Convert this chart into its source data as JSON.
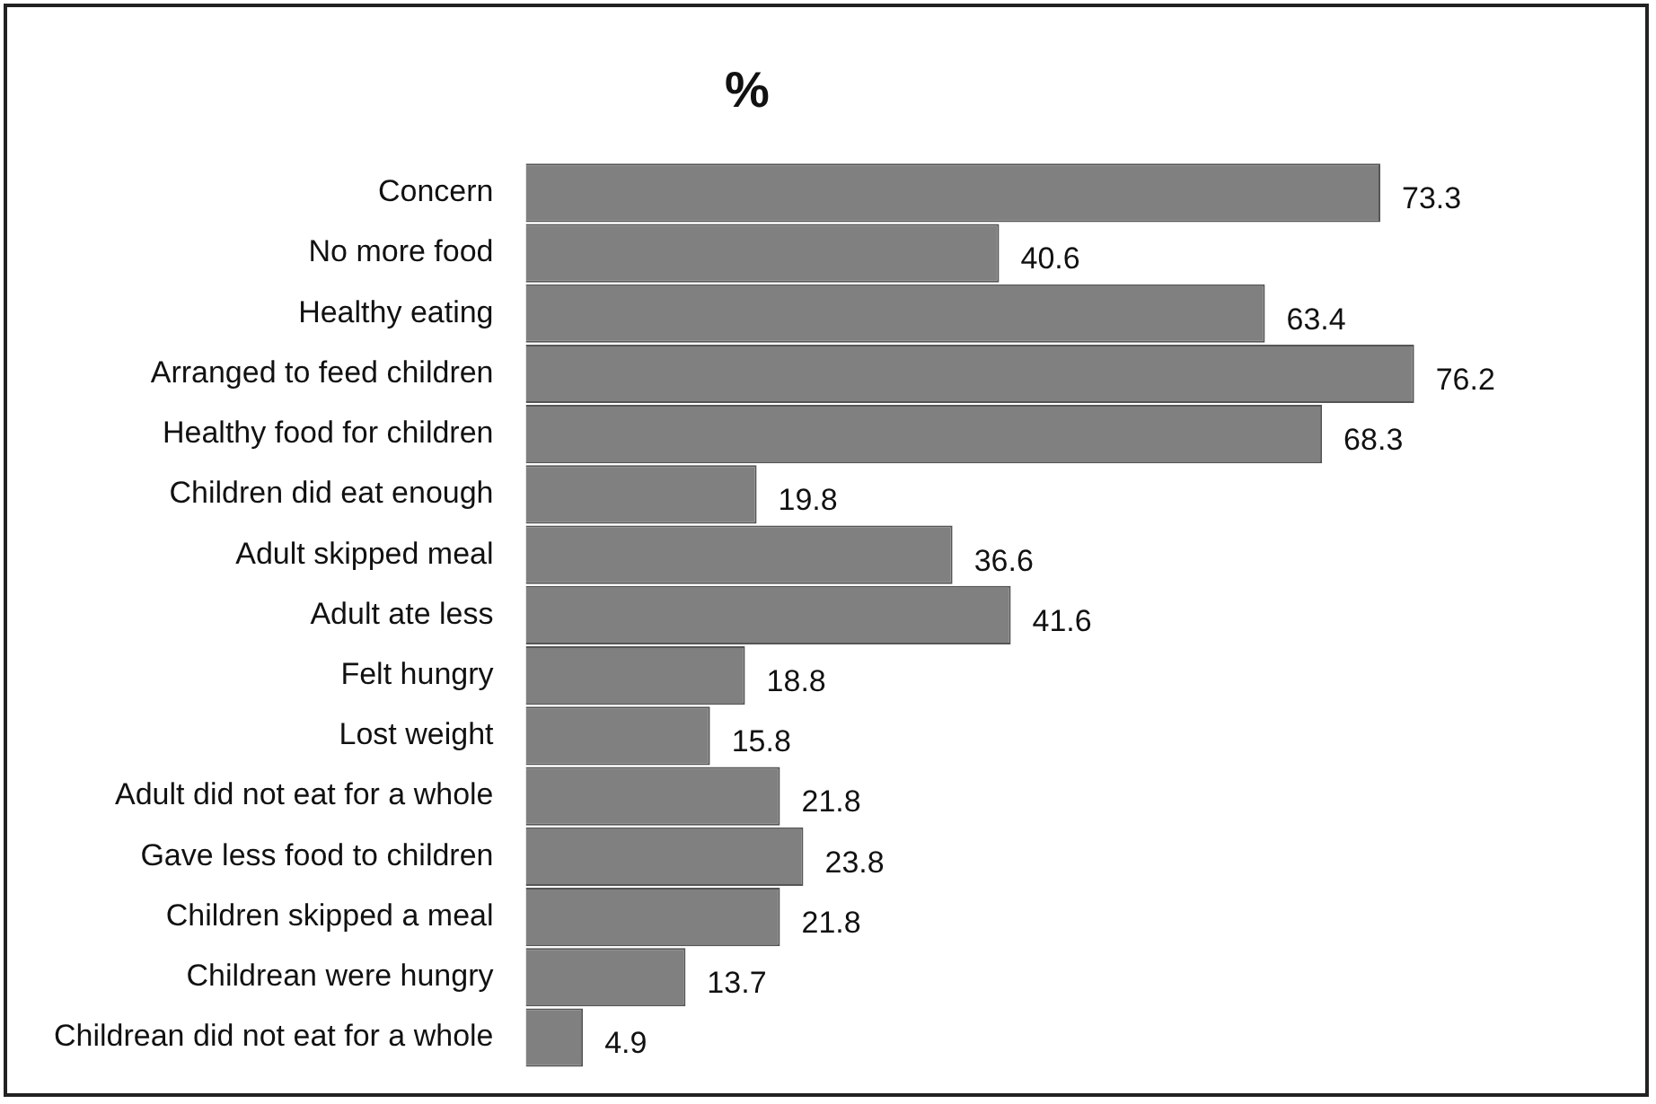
{
  "chart_data": {
    "type": "bar",
    "orientation": "horizontal",
    "title": "%",
    "categories": [
      "Concern",
      "No more food",
      "Healthy eating",
      "Arranged to feed children",
      "Healthy food for children",
      "Children did eat enough",
      "Adult skipped meal",
      "Adult ate less",
      "Felt hungry",
      "Lost weight",
      "Adult did not eat for a whole",
      "Gave less food to children",
      "Children skipped a meal",
      "Childrean were hungry",
      "Childrean did not eat for a whole"
    ],
    "values": [
      73.3,
      40.6,
      63.4,
      76.2,
      68.3,
      19.8,
      36.6,
      41.6,
      18.8,
      15.8,
      21.8,
      23.8,
      21.8,
      13.7,
      4.9
    ],
    "color": "#808080",
    "data_labels": true,
    "legend": false,
    "tick_labels": "y"
  }
}
